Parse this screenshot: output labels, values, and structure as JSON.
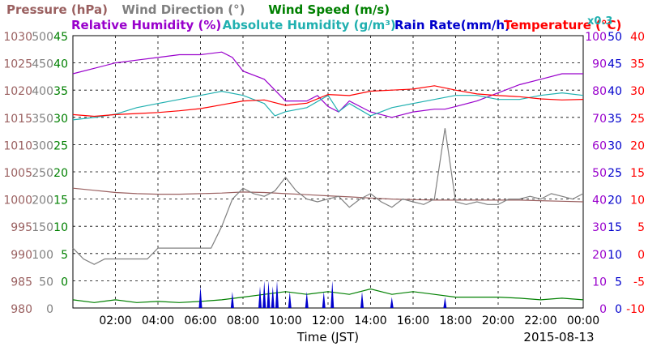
{
  "chart_data": {
    "type": "line",
    "date_label": "2015-08-13",
    "xlabel": "Time (JST)",
    "x_ticks": [
      "02:00",
      "04:00",
      "06:00",
      "08:00",
      "10:00",
      "12:00",
      "14:00",
      "16:00",
      "18:00",
      "20:00",
      "22:00",
      "00:00"
    ],
    "xlim_hours": [
      0,
      24
    ],
    "grid": true,
    "legend_row1": [
      {
        "label": "Pressure (hPa)",
        "color": "#9a6060"
      },
      {
        "label": "Wind Direction (°)",
        "color": "#808080"
      },
      {
        "label": "Wind Speed (m/s)",
        "color": "#008000"
      }
    ],
    "legend_row2": [
      {
        "label": "Relative Humidity (%)",
        "color": "#9900cc"
      },
      {
        "label": "Absolute Humidity (g/m³)",
        "color": "#20b0b0"
      },
      {
        "label": "Rain Rate(mm/h)",
        "color": "#0000cc"
      },
      {
        "label": "Temperature (°C)",
        "color": "#ff0000"
      }
    ],
    "scale_note": "x0.3",
    "axes": {
      "pressure": {
        "ticks": [
          "1030",
          "1025",
          "1020",
          "1015",
          "1010",
          "1005",
          "1000",
          "995",
          "990",
          "985",
          "980"
        ],
        "range": [
          980,
          1030
        ],
        "color": "#9a6060"
      },
      "wind_direction": {
        "ticks": [
          "500",
          "450",
          "400",
          "350",
          "300",
          "250",
          "200",
          "150",
          "100",
          "50",
          "0"
        ],
        "range": [
          0,
          500
        ],
        "color": "#808080"
      },
      "wind_speed": {
        "ticks": [
          "45",
          "40",
          "35",
          "30",
          "25",
          "20",
          "15",
          "10",
          "5",
          "0"
        ],
        "range": [
          0,
          50
        ],
        "color": "#008000"
      },
      "relative_humidity": {
        "ticks": [
          "100",
          "90",
          "80",
          "70",
          "60",
          "50",
          "40",
          "30",
          "20",
          "10",
          "0"
        ],
        "range": [
          0,
          100
        ],
        "color": "#9900cc"
      },
      "rain_rate": {
        "ticks": [
          "50",
          "45",
          "40",
          "35",
          "30",
          "25",
          "20",
          "15",
          "10",
          "5",
          "0"
        ],
        "range": [
          0,
          50
        ],
        "color": "#0000cc"
      },
      "temperature": {
        "ticks": [
          "40",
          "35",
          "30",
          "25",
          "20",
          "15",
          "10",
          "5",
          "0",
          "-5",
          "-10"
        ],
        "range": [
          -10,
          40
        ],
        "color": "#ff0000"
      }
    },
    "series": [
      {
        "name": "Pressure (hPa)",
        "color": "#9a6060",
        "x": [
          0,
          1,
          2,
          3,
          4,
          5,
          6,
          7,
          8,
          9,
          10,
          11,
          12,
          13,
          14,
          15,
          16,
          17,
          18,
          19,
          20,
          21,
          22,
          23,
          24
        ],
        "y": [
          1002,
          1001.6,
          1001.2,
          1001,
          1000.9,
          1000.9,
          1001,
          1001.1,
          1001.3,
          1001.2,
          1001,
          1000.8,
          1000.6,
          1000.4,
          1000.2,
          1000.0,
          999.9,
          999.8,
          999.8,
          999.8,
          999.8,
          999.8,
          999.7,
          999.6,
          999.5
        ]
      },
      {
        "name": "Wind Direction (°)",
        "color": "#808080",
        "x": [
          0,
          0.5,
          1,
          1.5,
          2,
          2.5,
          3,
          3.5,
          4,
          4.5,
          5,
          5.5,
          6,
          6.5,
          7,
          7.5,
          8,
          8.5,
          9,
          9.5,
          10,
          10.5,
          11,
          11.5,
          12,
          12.5,
          13,
          13.5,
          14,
          14.5,
          15,
          15.5,
          16,
          16.5,
          17,
          17.5,
          18,
          18.5,
          19,
          19.5,
          20,
          20.5,
          21,
          21.5,
          22,
          22.5,
          23,
          23.5,
          24
        ],
        "y": [
          110,
          90,
          80,
          90,
          90,
          90,
          90,
          90,
          110,
          110,
          110,
          110,
          110,
          110,
          150,
          200,
          220,
          210,
          205,
          215,
          240,
          215,
          200,
          195,
          200,
          205,
          185,
          200,
          210,
          195,
          185,
          200,
          195,
          190,
          200,
          330,
          195,
          190,
          195,
          190,
          190,
          200,
          200,
          205,
          200,
          210,
          205,
          200,
          210
        ]
      },
      {
        "name": "Wind Speed (m/s)",
        "color": "#008000",
        "x": [
          0,
          1,
          2,
          3,
          4,
          5,
          6,
          7,
          8,
          9,
          10,
          11,
          12,
          13,
          14,
          15,
          16,
          17,
          18,
          19,
          20,
          21,
          22,
          23,
          24
        ],
        "y": [
          1.5,
          1,
          1.5,
          1,
          1.2,
          1,
          1.2,
          1.5,
          2,
          2.5,
          3,
          2.5,
          3,
          2.5,
          3.5,
          2.5,
          3,
          2.5,
          2,
          2,
          2,
          1.8,
          1.5,
          1.8,
          1.5
        ]
      },
      {
        "name": "Relative Humidity (%)",
        "color": "#9900cc",
        "x": [
          0,
          1,
          2,
          3,
          4,
          5,
          6,
          7,
          7.5,
          8,
          9,
          9.5,
          10,
          11,
          11.5,
          12,
          12.5,
          13,
          14,
          15,
          16,
          17,
          17.5,
          18,
          19,
          20,
          21,
          22,
          23,
          24
        ],
        "y": [
          86,
          88,
          90,
          91,
          92,
          93,
          93,
          94,
          92,
          87,
          84,
          80,
          76,
          76,
          78,
          74,
          72,
          76,
          72,
          70,
          72,
          73,
          73,
          74,
          76,
          79,
          82,
          84,
          86,
          86
        ]
      },
      {
        "name": "Absolute Humidity (g/m³)",
        "color": "#20b0b0",
        "x": [
          0,
          1,
          2,
          3,
          4,
          5,
          6,
          7,
          8,
          9,
          9.5,
          10,
          11,
          12,
          12.5,
          13,
          14,
          15,
          16,
          17,
          18,
          19,
          20,
          21,
          22,
          23,
          24
        ],
        "y": [
          23,
          23.3,
          23.7,
          24.5,
          25,
          25.5,
          26,
          26.5,
          26,
          25,
          23.5,
          24,
          24.5,
          26,
          24,
          25,
          23.5,
          24.5,
          25,
          25.5,
          26,
          26,
          25.5,
          25.5,
          26,
          26.3,
          26
        ]
      },
      {
        "name": "Temperature (°C)",
        "color": "#ff0000",
        "x": [
          0,
          1,
          2,
          3,
          4,
          5,
          6,
          7,
          8,
          9,
          10,
          11,
          12,
          13,
          14,
          15,
          16,
          17,
          18,
          19,
          20,
          21,
          22,
          23,
          24
        ],
        "y": [
          25.5,
          25.2,
          25.5,
          25.7,
          25.9,
          26.2,
          26.6,
          27.3,
          28,
          28.2,
          27.2,
          27.6,
          29.2,
          29,
          29.8,
          30,
          30.2,
          30.8,
          30,
          29.3,
          29,
          28.8,
          28.4,
          28.2,
          28.3
        ]
      },
      {
        "name": "Rain Rate(mm/h)",
        "color": "#0000cc",
        "type": "spikes",
        "x": [
          6.0,
          7.5,
          8.8,
          9.0,
          9.2,
          9.4,
          9.6,
          10.2,
          11.0,
          11.8,
          12.2,
          13.6,
          15.0,
          17.5
        ],
        "y": [
          4,
          3,
          4,
          5,
          5,
          4,
          5,
          3,
          3,
          3,
          5,
          3,
          2,
          2
        ]
      }
    ]
  }
}
